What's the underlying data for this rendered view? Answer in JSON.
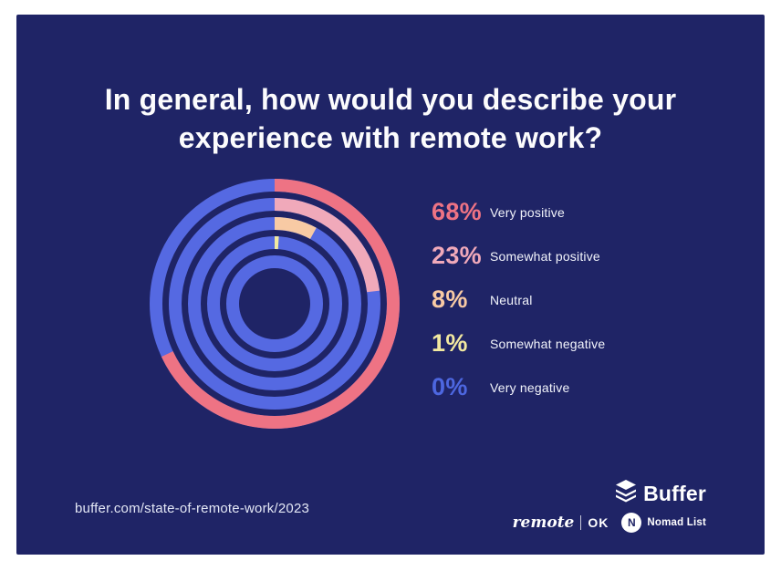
{
  "title": {
    "line1": "In general, how would you describe your",
    "line2": "experience with remote work?"
  },
  "chart_data": {
    "type": "concentric-donut",
    "title": "In general, how would you describe your experience with remote work?",
    "categories": [
      "Very positive",
      "Somewhat positive",
      "Neutral",
      "Somewhat negative",
      "Very negative"
    ],
    "values": [
      68,
      23,
      8,
      1,
      0
    ],
    "unit": "%",
    "colors": [
      "#ee7384",
      "#f0a9ba",
      "#f8caa4",
      "#f2e9a0",
      "#4d67e0"
    ],
    "track_color": "#5569e2",
    "start_angle_deg": 0,
    "direction": "clockwise",
    "ring_radii": [
      130,
      109,
      88,
      67,
      46
    ],
    "ring_stroke": 14,
    "legend_position": "right"
  },
  "legend": {
    "items": [
      {
        "value": "68%",
        "label": "Very positive",
        "color": "#ee7384"
      },
      {
        "value": "23%",
        "label": "Somewhat positive",
        "color": "#f0a9ba"
      },
      {
        "value": "8%",
        "label": "Neutral",
        "color": "#f8caa4"
      },
      {
        "value": "1%",
        "label": "Somewhat negative",
        "color": "#f2e9a0"
      },
      {
        "value": "0%",
        "label": "Very negative",
        "color": "#4d67e0"
      }
    ]
  },
  "footer": {
    "url": "buffer.com/state-of-remote-work/2023",
    "logos": {
      "buffer": "Buffer",
      "remote_script": "remote",
      "remote_caps": "OK",
      "nomad_initial": "N",
      "nomad": "Nomad List"
    }
  },
  "colors": {
    "background_panel": "#1f2466",
    "page_border": "#ffffff",
    "title_text": "#fcfcfd"
  }
}
